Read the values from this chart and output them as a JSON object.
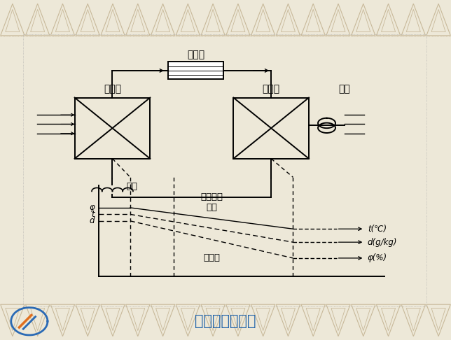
{
  "title": "制冷除湿机流程",
  "title_color": "#1a5fa8",
  "title_fontsize": 15,
  "bg_color": "#ede8d8",
  "border_color": "#c8b99a",
  "diagram_bg": "#ffffff",
  "label_compressor": "压缩机",
  "label_evaporator": "蒸发器",
  "label_condenser": "冷凝器",
  "label_fan": "风机",
  "label_throttle": "节流",
  "label_rh": "相对湿度",
  "label_temp": "温度",
  "label_moisture": "含湿量",
  "label_t": "t(℃)",
  "label_d": "d(g/kg)",
  "label_phi": "φ(%)",
  "label_phi_left": "φ",
  "label_t_left": "t",
  "label_d_left": "d"
}
